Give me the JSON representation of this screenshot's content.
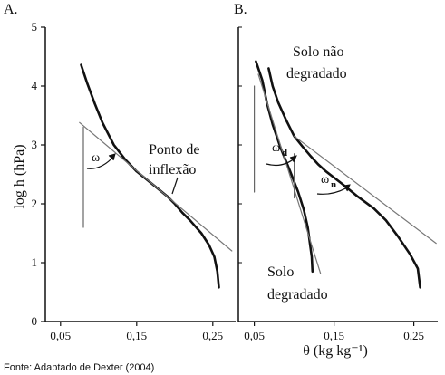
{
  "chart_data": [
    {
      "type": "line",
      "panel_label": "A.",
      "ylabel": "log h (hPa)",
      "ylim": [
        0,
        5
      ],
      "xlim": [
        0.03,
        0.28
      ],
      "yticks": [
        0,
        1,
        2,
        3,
        4,
        5
      ],
      "xticks": [
        "0,05",
        "0,15",
        "0,25"
      ],
      "series": [
        {
          "role": "retention-curve",
          "values": [
            [
              0.077,
              4.36
            ],
            [
              0.085,
              4.05
            ],
            [
              0.095,
              3.7
            ],
            [
              0.105,
              3.38
            ],
            [
              0.12,
              3.0
            ],
            [
              0.135,
              2.75
            ],
            [
              0.15,
              2.55
            ],
            [
              0.17,
              2.34
            ],
            [
              0.19,
              2.13
            ],
            [
              0.2,
              2.0
            ],
            [
              0.21,
              1.85
            ],
            [
              0.22,
              1.72
            ],
            [
              0.235,
              1.5
            ],
            [
              0.245,
              1.3
            ],
            [
              0.252,
              1.1
            ],
            [
              0.256,
              0.85
            ],
            [
              0.258,
              0.58
            ]
          ]
        },
        {
          "role": "tangent-at-inflection",
          "values": [
            [
              0.075,
              3.38
            ],
            [
              0.275,
              1.2
            ]
          ]
        },
        {
          "role": "vertical-reference",
          "values": [
            [
              0.08,
              3.3
            ],
            [
              0.08,
              1.6
            ]
          ]
        }
      ],
      "annotations": [
        "ω",
        "Ponto de",
        "inflexão"
      ]
    },
    {
      "type": "line",
      "panel_label": "B.",
      "xlabel": "θ (kg kg⁻¹)",
      "ylim": [
        0,
        5
      ],
      "xlim": [
        0.03,
        0.28
      ],
      "yticks": [
        0,
        1,
        2,
        3,
        4,
        5
      ],
      "xticks": [
        "0,05",
        "0,15",
        "0,25"
      ],
      "series": [
        {
          "role": "solo-nao-degradado",
          "values": [
            [
              0.068,
              4.3
            ],
            [
              0.073,
              4.0
            ],
            [
              0.08,
              3.72
            ],
            [
              0.09,
              3.42
            ],
            [
              0.1,
              3.15
            ],
            [
              0.11,
              2.98
            ],
            [
              0.12,
              2.82
            ],
            [
              0.13,
              2.67
            ],
            [
              0.14,
              2.55
            ],
            [
              0.16,
              2.34
            ],
            [
              0.18,
              2.12
            ],
            [
              0.2,
              1.92
            ],
            [
              0.215,
              1.72
            ],
            [
              0.23,
              1.45
            ],
            [
              0.245,
              1.15
            ],
            [
              0.255,
              0.9
            ],
            [
              0.258,
              0.58
            ]
          ]
        },
        {
          "role": "solo-degradado",
          "values": [
            [
              0.052,
              4.42
            ],
            [
              0.06,
              4.1
            ],
            [
              0.066,
              3.7
            ],
            [
              0.073,
              3.35
            ],
            [
              0.083,
              2.95
            ],
            [
              0.095,
              2.55
            ],
            [
              0.105,
              2.2
            ],
            [
              0.112,
              1.9
            ],
            [
              0.117,
              1.6
            ],
            [
              0.12,
              1.3
            ],
            [
              0.122,
              1.1
            ],
            [
              0.123,
              0.85
            ]
          ]
        },
        {
          "role": "tangent-nao-degradado",
          "values": [
            [
              0.1,
              3.15
            ],
            [
              0.278,
              1.33
            ]
          ]
        },
        {
          "role": "tangent-degradado",
          "values": [
            [
              0.055,
              4.2
            ],
            [
              0.133,
              0.82
            ]
          ]
        },
        {
          "role": "vertical-reference-1",
          "values": [
            [
              0.05,
              4.0
            ],
            [
              0.05,
              2.2
            ]
          ]
        },
        {
          "role": "vertical-reference-2",
          "values": [
            [
              0.1,
              2.85
            ],
            [
              0.1,
              2.1
            ]
          ]
        }
      ],
      "annotations": [
        "Solo não",
        "degradado",
        "ω",
        "d",
        "ω",
        "n",
        "Solo",
        "degradado"
      ]
    }
  ],
  "source": "Fonte: Adaptado de Dexter (2004)"
}
